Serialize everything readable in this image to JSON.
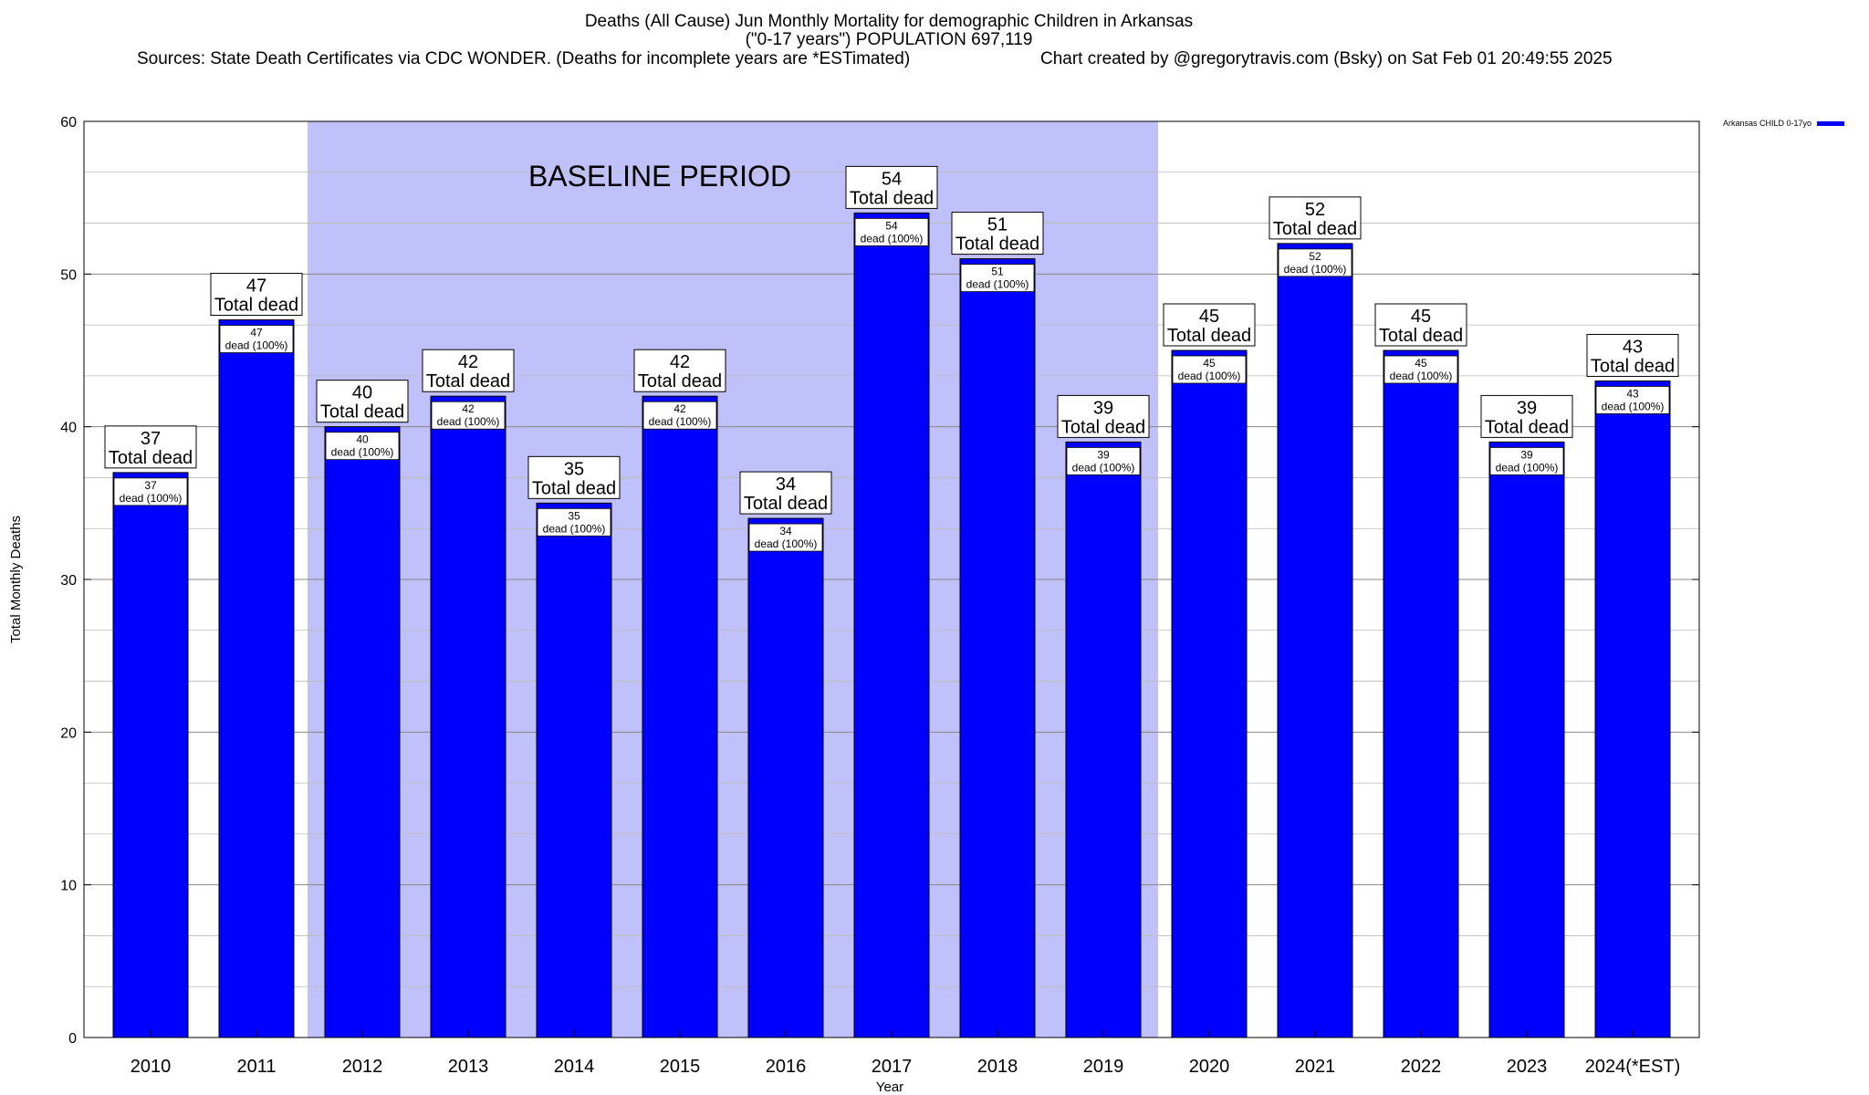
{
  "title": {
    "line1": "Deaths (All Cause) Jun Monthly Mortality for demographic Children in Arkansas",
    "line2": "(\"0-17 years\") POPULATION 697,119",
    "sources": "Sources: State Death Certificates via CDC WONDER. (Deaths for incomplete years are *ESTimated)",
    "credit": "Chart created by @gregorytravis.com (Bsky) on Sat Feb 01 20:49:55 2025"
  },
  "legend": {
    "label": "Arkansas CHILD 0-17yo",
    "color": "#0000ff"
  },
  "colors": {
    "bar": "#0000ff",
    "baseline_shade": "#c0c0fa",
    "grid": "#bbbbbb"
  },
  "chart_data": {
    "type": "bar",
    "title": "Deaths (All Cause) Jun Monthly Mortality for demographic Children in Arkansas",
    "xlabel": "Year",
    "ylabel": "Total Monthly Deaths",
    "ylim": [
      0,
      60
    ],
    "yticks": [
      0,
      10,
      20,
      30,
      40,
      50,
      60
    ],
    "grid": true,
    "legend_position": "top-right",
    "categories": [
      "2010",
      "2011",
      "2012",
      "2013",
      "2014",
      "2015",
      "2016",
      "2017",
      "2018",
      "2019",
      "2020",
      "2021",
      "2022",
      "2023",
      "2024(*EST)"
    ],
    "series": [
      {
        "name": "Arkansas CHILD 0-17yo",
        "values": [
          37,
          47,
          40,
          42,
          35,
          42,
          34,
          54,
          51,
          39,
          45,
          52,
          45,
          39,
          43
        ]
      }
    ],
    "total_label_suffix": "Total dead",
    "inner_label_suffix": "dead (100%)",
    "annotations": [
      {
        "text": "BASELINE PERIOD",
        "from_category": "2012",
        "to_category": "2019"
      }
    ]
  }
}
